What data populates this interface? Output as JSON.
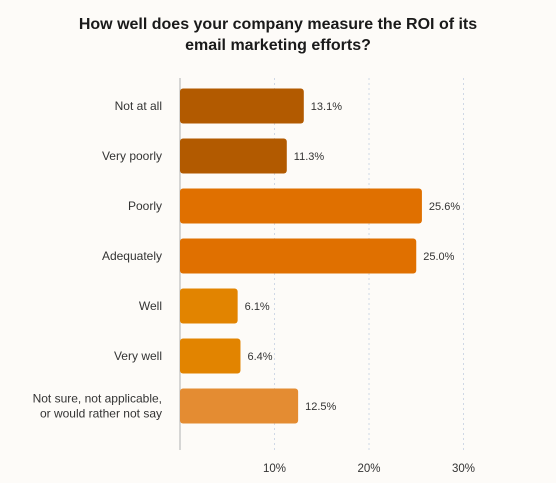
{
  "chart_data": {
    "type": "bar",
    "orientation": "horizontal",
    "title_lines": [
      "How well does your company measure the ROI of its",
      "email marketing efforts?"
    ],
    "categories": [
      [
        "Not at all"
      ],
      [
        "Very poorly"
      ],
      [
        "Poorly"
      ],
      [
        "Adequately"
      ],
      [
        "Well"
      ],
      [
        "Very well"
      ],
      [
        "Not sure, not applicable,",
        "or would rather not say"
      ]
    ],
    "values": [
      13.1,
      11.3,
      25.6,
      25.0,
      6.1,
      6.4,
      12.5
    ],
    "value_labels": [
      "13.1%",
      "11.3%",
      "25.6%",
      "25.0%",
      "6.1%",
      "6.4%",
      "12.5%"
    ],
    "bar_colors": [
      "#b25a00",
      "#b25a00",
      "#e07000",
      "#e07000",
      "#e28400",
      "#e28400",
      "#e48c32"
    ],
    "xticks": [
      10,
      20,
      30
    ],
    "xtick_labels": [
      "10%",
      "20%",
      "30%"
    ],
    "xlim": [
      0,
      32
    ],
    "grid": true,
    "colors": {
      "gridline": "#cfd8e6",
      "axis": "#c9c9c9"
    }
  }
}
